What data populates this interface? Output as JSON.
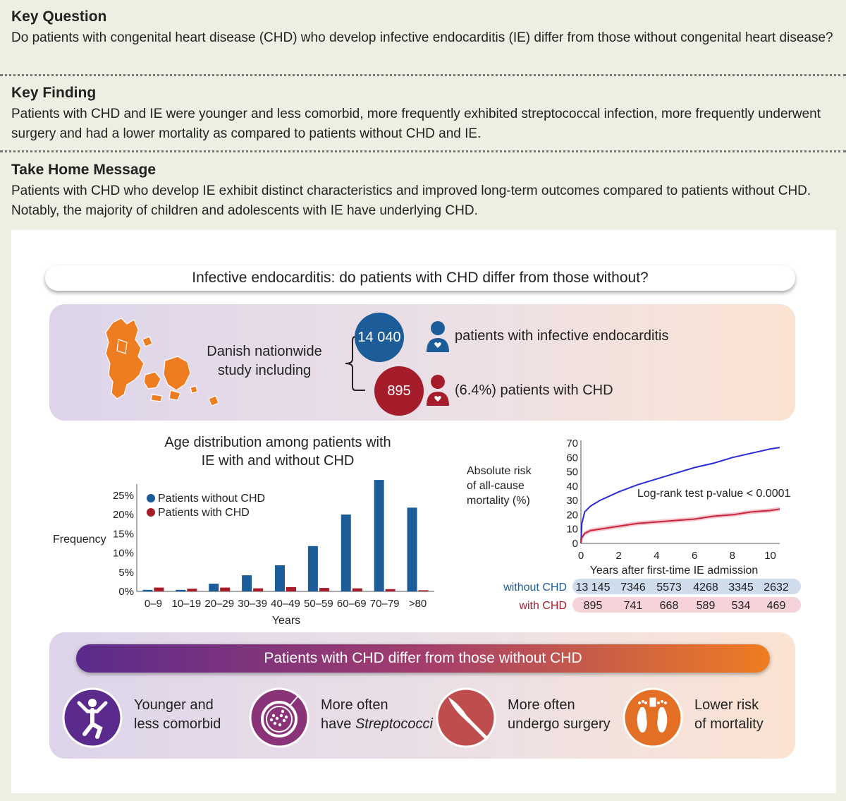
{
  "key_question": {
    "heading": "Key Question",
    "text": "Do patients with congenital heart disease (CHD) who develop infective endocarditis (IE) differ from those without congenital heart disease?"
  },
  "key_finding": {
    "heading": "Key Finding",
    "text": "Patients with CHD and IE were younger and less comorbid, more frequently exhibited streptococcal infection, more frequently underwent surgery and had a lower mortality as compared to patients without CHD and IE."
  },
  "take_home": {
    "heading": "Take Home Message",
    "text": "Patients with CHD who develop IE exhibit distinct characteristics and improved long-term outcomes compared to patients without CHD. Notably, the majority of children and adolescents with IE have underlying CHD."
  },
  "panel_title": "Infective endocarditis: do patients with CHD differ from those without?",
  "study": {
    "label": "Danish nationwide study including",
    "total_count": "14 040",
    "total_text": "patients with infective endocarditis",
    "chd_count": "895",
    "chd_text": "(6.4%) patients with CHD",
    "colors": {
      "without": "#1c5c99",
      "with": "#a51c2b",
      "map": "#ee7d22"
    }
  },
  "chart_data": [
    {
      "type": "bar",
      "title": "Age distribution among patients with IE with and without CHD",
      "title_lines": [
        "Age distribution among patients with",
        "IE with and without CHD"
      ],
      "xlabel": "Years",
      "ylabel": "Frequency",
      "categories": [
        "0–9",
        "10–19",
        "20–29",
        "30–39",
        "40–49",
        "50–59",
        "60–69",
        "70–79",
        ">80"
      ],
      "yticks": [
        "0%",
        "5%",
        "10%",
        "15%",
        "20%",
        "25%"
      ],
      "ylim": [
        0,
        27
      ],
      "legend_position": "top-left",
      "series": [
        {
          "name": "Patients without CHD",
          "color": "#1c5c99",
          "values": [
            0.4,
            0.4,
            2.0,
            4.2,
            6.8,
            11.8,
            20.0,
            29.0,
            21.8
          ]
        },
        {
          "name": "Patients with CHD",
          "color": "#a51c2b",
          "values": [
            1.0,
            0.7,
            1.0,
            0.8,
            1.1,
            0.9,
            0.8,
            0.6,
            0.3
          ]
        }
      ]
    },
    {
      "type": "line",
      "ylabel": "Absolute risk of all-cause mortality (%)",
      "ylabel_lines": [
        "Absolute risk",
        "of all-cause",
        "mortality (%)"
      ],
      "xlabel": "Years after first-time IE admission",
      "xticks": [
        "0",
        "2",
        "4",
        "6",
        "8",
        "10"
      ],
      "yticks": [
        "0",
        "10",
        "20",
        "30",
        "40",
        "50",
        "60",
        "70"
      ],
      "xlim": [
        0,
        10.5
      ],
      "ylim": [
        0,
        70
      ],
      "annotation": "Log-rank test p-value < 0.0001",
      "series": [
        {
          "name": "without CHD",
          "color": "#2b2bd6",
          "x": [
            0,
            0.05,
            0.2,
            0.5,
            1,
            2,
            3,
            4,
            5,
            6,
            7,
            8,
            9,
            10,
            10.5
          ],
          "y": [
            0,
            14,
            22,
            26,
            30,
            36,
            41,
            45,
            49,
            53,
            56,
            60,
            63,
            66,
            67
          ]
        },
        {
          "name": "with CHD",
          "color": "#c8263e",
          "x": [
            0,
            0.05,
            0.2,
            0.5,
            1,
            2,
            3,
            4,
            5,
            6,
            7,
            8,
            9,
            10,
            10.5
          ],
          "y": [
            0,
            4,
            7,
            9,
            10,
            12,
            14,
            15,
            16,
            17,
            19,
            20,
            22,
            23,
            24
          ]
        }
      ],
      "risk_table": {
        "rows": [
          {
            "label": "without CHD",
            "color": "#1c5c99",
            "values": [
              "13 145",
              "7346",
              "5573",
              "4268",
              "3345",
              "2632"
            ]
          },
          {
            "label": "with CHD",
            "color": "#a51c2b",
            "values": [
              "895",
              "741",
              "668",
              "589",
              "534",
              "469"
            ]
          }
        ]
      }
    }
  ],
  "differences": {
    "banner": "Patients with CHD differ from those without CHD",
    "items": [
      {
        "icon": "person-jumping-icon",
        "line1": "Younger and",
        "line2": "less comorbid",
        "color": "#5a2b8c"
      },
      {
        "icon": "petri-dish-icon",
        "line1": "More often",
        "line2_prefix": "have ",
        "line2_italic": "Streptococci",
        "color": "#8a3378"
      },
      {
        "icon": "scalpel-icon",
        "line1": "More often",
        "line2": "undergo surgery",
        "color": "#bf4d4d"
      },
      {
        "icon": "feet-tag-icon",
        "line1": "Lower risk",
        "line2": "of mortality",
        "color": "#e36f24"
      }
    ]
  }
}
